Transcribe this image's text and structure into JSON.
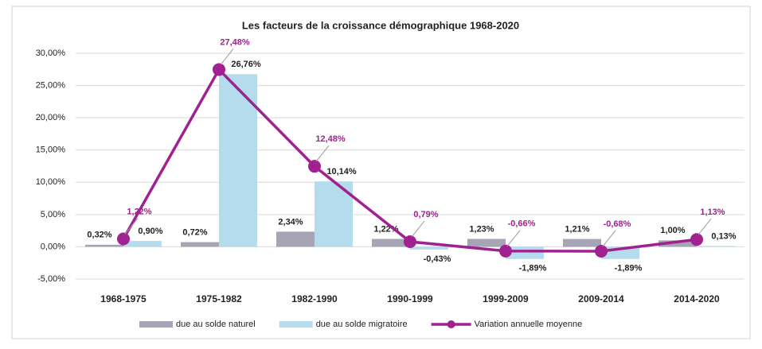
{
  "chart_data": {
    "type": "bar_line",
    "title": "Les facteurs de la croissance démographique 1968-2020",
    "categories": [
      "1968-1975",
      "1975-1982",
      "1982-1990",
      "1990-1999",
      "1999-2009",
      "2009-2014",
      "2014-2020"
    ],
    "series": [
      {
        "name": "due au solde naturel",
        "type": "bar",
        "color": "#a6a5b6",
        "values": [
          0.32,
          0.72,
          2.34,
          1.22,
          1.23,
          1.21,
          1.0
        ],
        "value_labels": [
          "0,32%",
          "0,72%",
          "2,34%",
          "1,22%",
          "1,23%",
          "1,21%",
          "1,00%"
        ]
      },
      {
        "name": "due au solde migratoire",
        "type": "bar",
        "color": "#b4dcec",
        "values": [
          0.9,
          26.76,
          10.14,
          -0.43,
          -1.89,
          -1.89,
          0.13
        ],
        "value_labels": [
          "0,90%",
          "26,76%",
          "10,14%",
          "-0,43%",
          "-1,89%",
          "-1,89%",
          "0,13%"
        ]
      },
      {
        "name": "Variation annuelle moyenne",
        "type": "line",
        "color": "#a0218f",
        "values": [
          1.22,
          27.48,
          12.48,
          0.79,
          -0.66,
          -0.68,
          1.13
        ],
        "value_labels": [
          "1,22%",
          "27,48%",
          "12,48%",
          "0,79%",
          "-0,66%",
          "-0,68%",
          "1,13%"
        ]
      }
    ],
    "ylim": [
      -5,
      30
    ],
    "yticks": [
      {
        "value": -5,
        "label": "-5,00%"
      },
      {
        "value": 0,
        "label": "0,00%"
      },
      {
        "value": 5,
        "label": "5,00%"
      },
      {
        "value": 10,
        "label": "10,00%"
      },
      {
        "value": 15,
        "label": "15,00%"
      },
      {
        "value": 20,
        "label": "20,00%"
      },
      {
        "value": 25,
        "label": "25,00%"
      },
      {
        "value": 30,
        "label": "30,00%"
      }
    ],
    "grid": true,
    "legend": "bottom"
  }
}
